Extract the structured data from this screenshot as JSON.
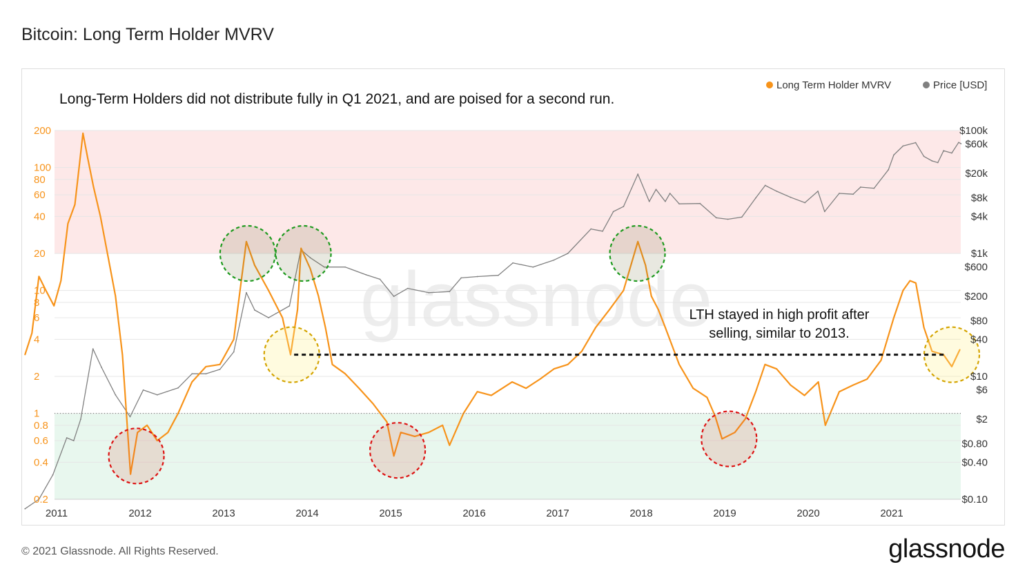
{
  "page": {
    "title": "Bitcoin: Long Term Holder MVRV",
    "copyright": "© 2021 Glassnode. All Rights Reserved.",
    "logo_text": "glassnode",
    "watermark": "glassnode"
  },
  "chart_data": {
    "type": "line",
    "title": "Bitcoin: Long Term Holder MVRV",
    "annotation_top": "Long-Term Holders did not distribute fully in Q1 2021, and are poised for a second run.",
    "annotation_right": [
      "LTH stayed in high profit after",
      "selling, similar to 2013."
    ],
    "x_ticks": [
      "2011",
      "2012",
      "2013",
      "2014",
      "2015",
      "2016",
      "2017",
      "2018",
      "2019",
      "2020",
      "2021"
    ],
    "y_left_ticks": [
      "200",
      "100",
      "80",
      "60",
      "40",
      "20",
      "10",
      "8",
      "6",
      "4",
      "2",
      "1",
      "0.8",
      "0.6",
      "0.4",
      "0.2"
    ],
    "y_right_ticks": [
      "$100k",
      "$60k",
      "$20k",
      "$8k",
      "$4k",
      "$1k",
      "$600",
      "$200",
      "$80",
      "$40",
      "$10",
      "$6",
      "$2",
      "$0.80",
      "$0.40",
      "$0.10"
    ],
    "ylim_left": [
      0.2,
      200
    ],
    "ylim_right": [
      0.1,
      100000
    ],
    "log_scale": true,
    "colors": {
      "mvrv": "#f7931a",
      "price": "#808080",
      "upper_band": "#fde8e8",
      "lower_band": "#e8f7ee"
    },
    "bands": [
      {
        "name": "upper",
        "from": 20,
        "to": 200
      },
      {
        "name": "lower",
        "from": 0.2,
        "to": 1
      }
    ],
    "legend": {
      "position": "top-right"
    },
    "series": [
      {
        "name": "Long Term Holder MVRV",
        "axis": "left",
        "points": [
          [
            "2010-08-15",
            3.0
          ],
          [
            "2010-09-15",
            4.5
          ],
          [
            "2010-10-15",
            13
          ],
          [
            "2010-11-15",
            10
          ],
          [
            "2010-12-20",
            7.5
          ],
          [
            "2011-01-20",
            12
          ],
          [
            "2011-02-20",
            35
          ],
          [
            "2011-03-20",
            50
          ],
          [
            "2011-04-25",
            190
          ],
          [
            "2011-05-15",
            120
          ],
          [
            "2011-06-10",
            70
          ],
          [
            "2011-07-10",
            40
          ],
          [
            "2011-08-15",
            18
          ],
          [
            "2011-09-15",
            9
          ],
          [
            "2011-10-15",
            3
          ],
          [
            "2011-11-20",
            0.32
          ],
          [
            "2011-12-20",
            0.7
          ],
          [
            "2012-02-01",
            0.8
          ],
          [
            "2012-03-15",
            0.6
          ],
          [
            "2012-05-01",
            0.7
          ],
          [
            "2012-06-15",
            1.0
          ],
          [
            "2012-08-15",
            1.8
          ],
          [
            "2012-10-15",
            2.4
          ],
          [
            "2012-12-15",
            2.5
          ],
          [
            "2013-02-15",
            4
          ],
          [
            "2013-04-09",
            25
          ],
          [
            "2013-05-15",
            16
          ],
          [
            "2013-07-15",
            10
          ],
          [
            "2013-09-15",
            6
          ],
          [
            "2013-10-20",
            3.0
          ],
          [
            "2013-11-20",
            7
          ],
          [
            "2013-12-05",
            22
          ],
          [
            "2014-01-15",
            15
          ],
          [
            "2014-02-20",
            9
          ],
          [
            "2014-03-20",
            5
          ],
          [
            "2014-04-20",
            2.5
          ],
          [
            "2014-06-15",
            2.1
          ],
          [
            "2014-08-15",
            1.6
          ],
          [
            "2014-10-15",
            1.2
          ],
          [
            "2014-12-15",
            0.85
          ],
          [
            "2015-01-15",
            0.45
          ],
          [
            "2015-02-15",
            0.7
          ],
          [
            "2015-04-15",
            0.65
          ],
          [
            "2015-06-15",
            0.7
          ],
          [
            "2015-08-15",
            0.8
          ],
          [
            "2015-09-15",
            0.55
          ],
          [
            "2015-11-15",
            1.0
          ],
          [
            "2016-01-15",
            1.5
          ],
          [
            "2016-03-15",
            1.4
          ],
          [
            "2016-06-15",
            1.8
          ],
          [
            "2016-08-15",
            1.6
          ],
          [
            "2016-10-15",
            1.9
          ],
          [
            "2016-12-15",
            2.3
          ],
          [
            "2017-02-15",
            2.5
          ],
          [
            "2017-04-15",
            3.2
          ],
          [
            "2017-06-15",
            5
          ],
          [
            "2017-08-15",
            7
          ],
          [
            "2017-10-15",
            10
          ],
          [
            "2017-12-17",
            25
          ],
          [
            "2018-01-20",
            16
          ],
          [
            "2018-02-15",
            9
          ],
          [
            "2018-03-15",
            7
          ],
          [
            "2018-04-15",
            5
          ],
          [
            "2018-06-15",
            2.5
          ],
          [
            "2018-08-15",
            1.6
          ],
          [
            "2018-10-15",
            1.35
          ],
          [
            "2018-11-20",
            0.95
          ],
          [
            "2018-12-20",
            0.62
          ],
          [
            "2019-02-15",
            0.7
          ],
          [
            "2019-03-30",
            0.9
          ],
          [
            "2019-05-15",
            1.5
          ],
          [
            "2019-06-25",
            2.5
          ],
          [
            "2019-08-15",
            2.3
          ],
          [
            "2019-10-15",
            1.7
          ],
          [
            "2019-12-15",
            1.4
          ],
          [
            "2020-02-15",
            1.8
          ],
          [
            "2020-03-15",
            0.8
          ],
          [
            "2020-05-15",
            1.5
          ],
          [
            "2020-07-15",
            1.7
          ],
          [
            "2020-09-15",
            1.9
          ],
          [
            "2020-11-15",
            2.7
          ],
          [
            "2021-01-10",
            6
          ],
          [
            "2021-02-20",
            10
          ],
          [
            "2021-03-20",
            12
          ],
          [
            "2021-04-15",
            11.5
          ],
          [
            "2021-05-20",
            5
          ],
          [
            "2021-06-25",
            3.2
          ],
          [
            "2021-08-15",
            3.0
          ],
          [
            "2021-09-20",
            2.4
          ],
          [
            "2021-10-25",
            3.3
          ]
        ]
      },
      {
        "name": "Price [USD]",
        "axis": "right",
        "points": [
          [
            "2010-08-15",
            0.07
          ],
          [
            "2010-10-15",
            0.1
          ],
          [
            "2010-12-15",
            0.25
          ],
          [
            "2011-02-15",
            1
          ],
          [
            "2011-03-15",
            0.9
          ],
          [
            "2011-04-15",
            2
          ],
          [
            "2011-06-08",
            28
          ],
          [
            "2011-07-15",
            14
          ],
          [
            "2011-09-15",
            5
          ],
          [
            "2011-11-18",
            2.2
          ],
          [
            "2012-01-15",
            6
          ],
          [
            "2012-03-15",
            5
          ],
          [
            "2012-06-15",
            6.5
          ],
          [
            "2012-08-15",
            11
          ],
          [
            "2012-10-15",
            11
          ],
          [
            "2012-12-15",
            13
          ],
          [
            "2013-02-15",
            25
          ],
          [
            "2013-04-09",
            230
          ],
          [
            "2013-05-15",
            120
          ],
          [
            "2013-07-15",
            90
          ],
          [
            "2013-10-15",
            140
          ],
          [
            "2013-12-04",
            1150
          ],
          [
            "2014-01-15",
            850
          ],
          [
            "2014-03-15",
            600
          ],
          [
            "2014-06-15",
            600
          ],
          [
            "2014-09-15",
            450
          ],
          [
            "2014-11-15",
            380
          ],
          [
            "2015-01-15",
            200
          ],
          [
            "2015-03-15",
            270
          ],
          [
            "2015-06-15",
            230
          ],
          [
            "2015-09-15",
            240
          ],
          [
            "2015-11-05",
            400
          ],
          [
            "2016-01-15",
            420
          ],
          [
            "2016-04-15",
            440
          ],
          [
            "2016-06-18",
            700
          ],
          [
            "2016-09-15",
            600
          ],
          [
            "2016-12-15",
            780
          ],
          [
            "2017-02-15",
            1000
          ],
          [
            "2017-05-25",
            2500
          ],
          [
            "2017-07-15",
            2300
          ],
          [
            "2017-09-01",
            4800
          ],
          [
            "2017-10-15",
            5800
          ],
          [
            "2017-12-17",
            19500
          ],
          [
            "2018-02-06",
            7000
          ],
          [
            "2018-03-05",
            11000
          ],
          [
            "2018-04-15",
            7000
          ],
          [
            "2018-05-05",
            9500
          ],
          [
            "2018-06-15",
            6400
          ],
          [
            "2018-09-15",
            6500
          ],
          [
            "2018-11-25",
            3800
          ],
          [
            "2019-01-15",
            3600
          ],
          [
            "2019-03-15",
            3900
          ],
          [
            "2019-05-15",
            8000
          ],
          [
            "2019-06-26",
            12800
          ],
          [
            "2019-08-15",
            10300
          ],
          [
            "2019-10-15",
            8200
          ],
          [
            "2019-12-17",
            6700
          ],
          [
            "2020-02-13",
            10300
          ],
          [
            "2020-03-12",
            4800
          ],
          [
            "2020-05-15",
            9500
          ],
          [
            "2020-07-15",
            9200
          ],
          [
            "2020-08-17",
            12000
          ],
          [
            "2020-10-15",
            11500
          ],
          [
            "2020-12-17",
            23000
          ],
          [
            "2021-01-10",
            40000
          ],
          [
            "2021-02-20",
            56000
          ],
          [
            "2021-04-14",
            63500
          ],
          [
            "2021-05-20",
            38000
          ],
          [
            "2021-06-25",
            32000
          ],
          [
            "2021-07-20",
            30000
          ],
          [
            "2021-08-15",
            47000
          ],
          [
            "2021-09-20",
            43000
          ],
          [
            "2021-10-20",
            64000
          ],
          [
            "2021-10-30",
            61000
          ]
        ]
      }
    ],
    "highlight_circles": [
      {
        "date": "2011-12-15",
        "value": 0.45,
        "color": "red"
      },
      {
        "date": "2013-04-15",
        "value": 20,
        "color": "green"
      },
      {
        "date": "2013-10-25",
        "value": 3.0,
        "color": "yellow"
      },
      {
        "date": "2013-12-15",
        "value": 20,
        "color": "green"
      },
      {
        "date": "2015-02-01",
        "value": 0.5,
        "color": "red"
      },
      {
        "date": "2017-12-15",
        "value": 20,
        "color": "green"
      },
      {
        "date": "2019-01-20",
        "value": 0.62,
        "color": "red"
      },
      {
        "date": "2021-09-20",
        "value": 3.0,
        "color": "yellow"
      }
    ],
    "reference_line": {
      "value": 3.0,
      "from": "2013-11-05",
      "to": "2021-08-30",
      "style": "dashed"
    },
    "dotted_line": {
      "value": 1
    }
  }
}
